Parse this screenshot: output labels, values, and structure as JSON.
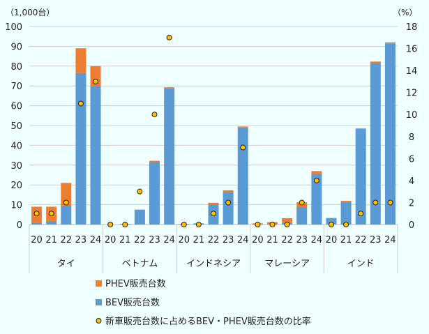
{
  "chart_data": {
    "type": "bar",
    "left_unit": "（1,000台）",
    "right_unit": "（%）",
    "ylim": [
      0,
      100
    ],
    "y2lim": [
      0,
      18
    ],
    "yticks": [
      "0",
      "10",
      "20",
      "30",
      "40",
      "50",
      "60",
      "70",
      "80",
      "90",
      "100"
    ],
    "y2ticks": [
      "0",
      "2",
      "4",
      "6",
      "8",
      "10",
      "12",
      "14",
      "16",
      "18"
    ],
    "groups": [
      "タイ",
      "ベトナム",
      "インドネシア",
      "マレーシア",
      "インド"
    ],
    "years": [
      "20",
      "21",
      "22",
      "23",
      "24"
    ],
    "series": [
      {
        "name": "PHEV販売台数",
        "color": "#ed7d31",
        "values": [
          [
            8,
            7.2,
            11.5,
            12.5,
            10
          ],
          [
            0,
            0,
            0,
            0.7,
            0.5
          ],
          [
            0,
            0,
            0.8,
            0.8,
            0.5
          ],
          [
            0.5,
            1,
            2.4,
            2.4,
            1.5
          ],
          [
            0,
            0.5,
            0,
            0.8,
            0.5
          ]
        ]
      },
      {
        "name": "BEV販売台数",
        "color": "#5b9bd5",
        "values": [
          [
            1,
            1.8,
            9.5,
            76.5,
            70
          ],
          [
            0,
            0.3,
            7.5,
            31.5,
            68.8
          ],
          [
            0.3,
            0.6,
            10.2,
            16.5,
            49
          ],
          [
            0.1,
            0.2,
            0.8,
            8.8,
            25.5
          ],
          [
            3.3,
            11.5,
            48.5,
            81.5,
            91.5
          ]
        ]
      },
      {
        "name": "新車販売台数に占めるBEV・PHEV販売台数の比率",
        "color": "#ffc000",
        "axis": "right",
        "values": [
          [
            1,
            1,
            2,
            11,
            13
          ],
          [
            0,
            0,
            3,
            10,
            17
          ],
          [
            0,
            0,
            1,
            2,
            7
          ],
          [
            0,
            0,
            0,
            2,
            4
          ],
          [
            0,
            0,
            1,
            2,
            2
          ]
        ]
      }
    ]
  }
}
